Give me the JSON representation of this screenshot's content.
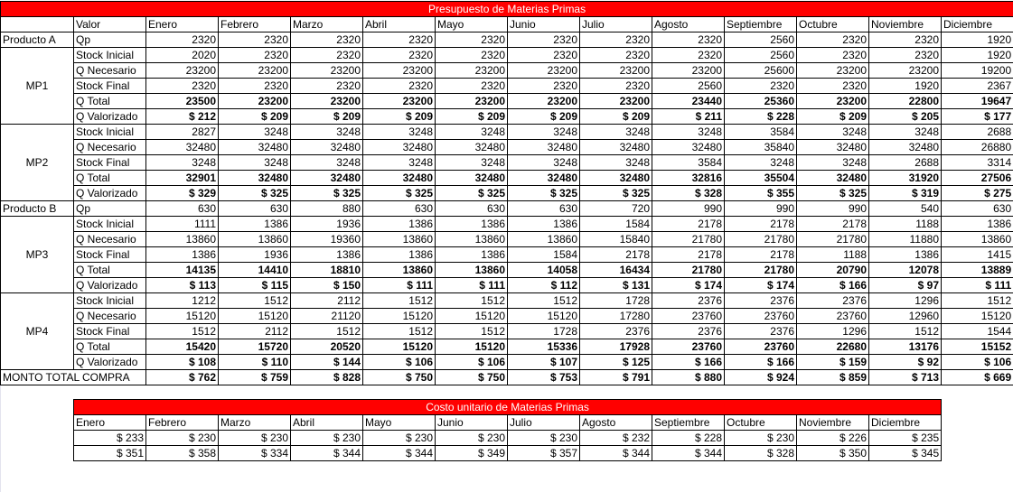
{
  "budget": {
    "title": "Presupuesto de Materias Primas",
    "header": [
      "Valor",
      "Enero",
      "Febrero",
      "Marzo",
      "Abril",
      "Mayo",
      "Junio",
      "Julio",
      "Agosto",
      "Septiembre",
      "Octubre",
      "Noviembre",
      "Diciembre"
    ],
    "producto_a": {
      "label": "Producto A",
      "row": {
        "label": "Qp",
        "values": [
          "2320",
          "2320",
          "2320",
          "2320",
          "2320",
          "2320",
          "2320",
          "2320",
          "2560",
          "2320",
          "2320",
          "1920"
        ]
      }
    },
    "mp1": {
      "label": "MP1",
      "rows": [
        {
          "label": "Stock Inicial",
          "bold": false,
          "values": [
            "2020",
            "2320",
            "2320",
            "2320",
            "2320",
            "2320",
            "2320",
            "2320",
            "2560",
            "2320",
            "2320",
            "1920"
          ]
        },
        {
          "label": "Q Necesario",
          "bold": false,
          "values": [
            "23200",
            "23200",
            "23200",
            "23200",
            "23200",
            "23200",
            "23200",
            "23200",
            "25600",
            "23200",
            "23200",
            "19200"
          ]
        },
        {
          "label": "Stock Final",
          "bold": false,
          "values": [
            "2320",
            "2320",
            "2320",
            "2320",
            "2320",
            "2320",
            "2320",
            "2560",
            "2320",
            "2320",
            "1920",
            "2367"
          ]
        },
        {
          "label": "Q Total",
          "bold": true,
          "values": [
            "23500",
            "23200",
            "23200",
            "23200",
            "23200",
            "23200",
            "23200",
            "23440",
            "25360",
            "23200",
            "22800",
            "19647"
          ]
        },
        {
          "label": "Q Valorizado",
          "bold": true,
          "values": [
            "$ 212",
            "$ 209",
            "$ 209",
            "$ 209",
            "$ 209",
            "$ 209",
            "$ 209",
            "$ 211",
            "$ 228",
            "$ 209",
            "$ 205",
            "$ 177"
          ]
        }
      ]
    },
    "mp2": {
      "label": "MP2",
      "rows": [
        {
          "label": "Stock Inicial",
          "bold": false,
          "values": [
            "2827",
            "3248",
            "3248",
            "3248",
            "3248",
            "3248",
            "3248",
            "3248",
            "3584",
            "3248",
            "3248",
            "2688"
          ]
        },
        {
          "label": "Q Necesario",
          "bold": false,
          "values": [
            "32480",
            "32480",
            "32480",
            "32480",
            "32480",
            "32480",
            "32480",
            "32480",
            "35840",
            "32480",
            "32480",
            "26880"
          ]
        },
        {
          "label": "Stock Final",
          "bold": false,
          "values": [
            "3248",
            "3248",
            "3248",
            "3248",
            "3248",
            "3248",
            "3248",
            "3584",
            "3248",
            "3248",
            "2688",
            "3314"
          ]
        },
        {
          "label": "Q Total",
          "bold": true,
          "values": [
            "32901",
            "32480",
            "32480",
            "32480",
            "32480",
            "32480",
            "32480",
            "32816",
            "35504",
            "32480",
            "31920",
            "27506"
          ]
        },
        {
          "label": "Q Valorizado",
          "bold": true,
          "values": [
            "$ 329",
            "$ 325",
            "$ 325",
            "$ 325",
            "$ 325",
            "$ 325",
            "$ 325",
            "$ 328",
            "$ 355",
            "$ 325",
            "$ 319",
            "$ 275"
          ]
        }
      ]
    },
    "producto_b": {
      "label": "Producto B",
      "row": {
        "label": "Qp",
        "values": [
          "630",
          "630",
          "880",
          "630",
          "630",
          "630",
          "720",
          "990",
          "990",
          "990",
          "540",
          "630"
        ]
      }
    },
    "mp3": {
      "label": "MP3",
      "rows": [
        {
          "label": "Stock Inicial",
          "bold": false,
          "values": [
            "1111",
            "1386",
            "1936",
            "1386",
            "1386",
            "1386",
            "1584",
            "2178",
            "2178",
            "2178",
            "1188",
            "1386"
          ]
        },
        {
          "label": "Q Necesario",
          "bold": false,
          "values": [
            "13860",
            "13860",
            "19360",
            "13860",
            "13860",
            "13860",
            "15840",
            "21780",
            "21780",
            "21780",
            "11880",
            "13860"
          ]
        },
        {
          "label": "Stock Final",
          "bold": false,
          "values": [
            "1386",
            "1936",
            "1386",
            "1386",
            "1386",
            "1584",
            "2178",
            "2178",
            "2178",
            "1188",
            "1386",
            "1415"
          ]
        },
        {
          "label": "Q Total",
          "bold": true,
          "values": [
            "14135",
            "14410",
            "18810",
            "13860",
            "13860",
            "14058",
            "16434",
            "21780",
            "21780",
            "20790",
            "12078",
            "13889"
          ]
        },
        {
          "label": "Q Valorizado",
          "bold": true,
          "values": [
            "$ 113",
            "$ 115",
            "$ 150",
            "$ 111",
            "$ 111",
            "$ 112",
            "$ 131",
            "$ 174",
            "$ 174",
            "$ 166",
            "$ 97",
            "$ 111"
          ]
        }
      ]
    },
    "mp4": {
      "label": "MP4",
      "rows": [
        {
          "label": "Stock Inicial",
          "bold": false,
          "values": [
            "1212",
            "1512",
            "2112",
            "1512",
            "1512",
            "1512",
            "1728",
            "2376",
            "2376",
            "2376",
            "1296",
            "1512"
          ]
        },
        {
          "label": "Q Necesario",
          "bold": false,
          "values": [
            "15120",
            "15120",
            "21120",
            "15120",
            "15120",
            "15120",
            "17280",
            "23760",
            "23760",
            "23760",
            "12960",
            "15120"
          ]
        },
        {
          "label": "Stock Final",
          "bold": false,
          "values": [
            "1512",
            "2112",
            "1512",
            "1512",
            "1512",
            "1728",
            "2376",
            "2376",
            "2376",
            "1296",
            "1512",
            "1544"
          ]
        },
        {
          "label": "Q Total",
          "bold": true,
          "values": [
            "15420",
            "15720",
            "20520",
            "15120",
            "15120",
            "15336",
            "17928",
            "23760",
            "23760",
            "22680",
            "13176",
            "15152"
          ]
        },
        {
          "label": "Q Valorizado",
          "bold": true,
          "values": [
            "$ 108",
            "$ 110",
            "$ 144",
            "$ 106",
            "$ 106",
            "$ 107",
            "$ 125",
            "$ 166",
            "$ 166",
            "$ 159",
            "$ 92",
            "$ 106"
          ]
        }
      ]
    },
    "total": {
      "label": "MONTO TOTAL COMPRA",
      "values": [
        "$ 762",
        "$ 759",
        "$ 828",
        "$ 750",
        "$ 750",
        "$ 753",
        "$ 791",
        "$ 880",
        "$ 924",
        "$ 859",
        "$ 713",
        "$ 669"
      ]
    }
  },
  "unit_cost": {
    "title": "Costo unitario de Materias Primas",
    "header": [
      "Enero",
      "Febrero",
      "Marzo",
      "Abril",
      "Mayo",
      "Junio",
      "Julio",
      "Agosto",
      "Septiembre",
      "Octubre",
      "Noviembre",
      "Diciembre"
    ],
    "rows": [
      [
        "$ 233",
        "$ 230",
        "$ 230",
        "$ 230",
        "$ 230",
        "$ 230",
        "$ 230",
        "$ 232",
        "$ 228",
        "$ 230",
        "$ 226",
        "$ 235"
      ],
      [
        "$ 351",
        "$ 358",
        "$ 334",
        "$ 344",
        "$ 344",
        "$ 349",
        "$ 357",
        "$ 344",
        "$ 344",
        "$ 328",
        "$ 350",
        "$ 345"
      ]
    ]
  },
  "colors": {
    "title_bg": "#ff0000",
    "title_text": "#ffffff",
    "border": "#000000"
  }
}
